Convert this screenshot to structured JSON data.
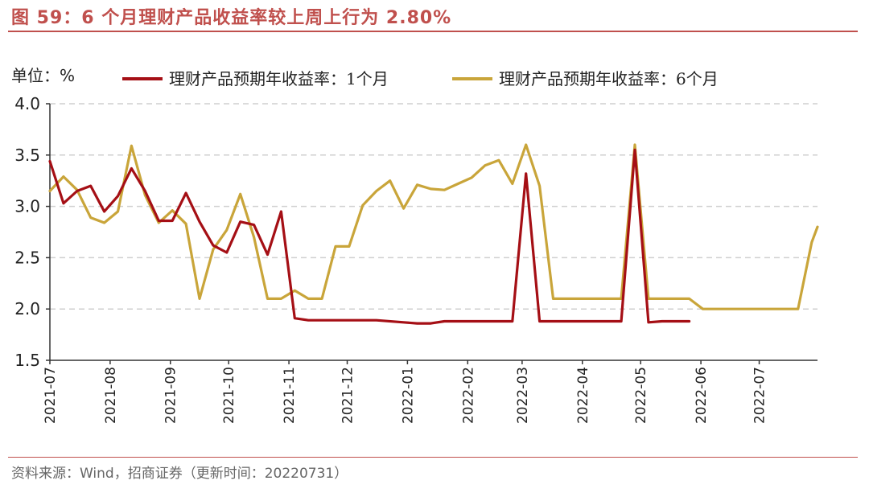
{
  "title": "图 59：6 个月理财产品收益率较上周上行为 2.80%",
  "source": "资料来源：Wind，招商证券（更新时间：20220731）",
  "chart_data": {
    "type": "line",
    "ylabel": "单位：%",
    "ylim": [
      1.5,
      4.0
    ],
    "yticks": [
      "1.5",
      "2.0",
      "2.5",
      "3.0",
      "3.5",
      "4.0"
    ],
    "xticks": [
      "2021-07",
      "2021-08",
      "2021-09",
      "2021-10",
      "2021-11",
      "2021-12",
      "2022-01",
      "2022-02",
      "2022-03",
      "2022-04",
      "2022-05",
      "2022-06",
      "2022-07"
    ],
    "grid": "horizontal-dashed",
    "legend": "top",
    "series": [
      {
        "name": "理财产品预期年收益率：1个月",
        "color": "#a50f15",
        "points": [
          [
            "2021-07-01",
            3.44
          ],
          [
            "2021-07-08",
            3.03
          ],
          [
            "2021-07-15",
            3.15
          ],
          [
            "2021-07-22",
            3.2
          ],
          [
            "2021-07-29",
            2.95
          ],
          [
            "2021-08-05",
            3.1
          ],
          [
            "2021-08-12",
            3.37
          ],
          [
            "2021-08-19",
            3.15
          ],
          [
            "2021-08-26",
            2.86
          ],
          [
            "2021-09-02",
            2.86
          ],
          [
            "2021-09-09",
            3.13
          ],
          [
            "2021-09-16",
            2.85
          ],
          [
            "2021-09-23",
            2.62
          ],
          [
            "2021-09-30",
            2.55
          ],
          [
            "2021-10-07",
            2.85
          ],
          [
            "2021-10-14",
            2.82
          ],
          [
            "2021-10-21",
            2.53
          ],
          [
            "2021-10-28",
            2.95
          ],
          [
            "2021-11-04",
            1.91
          ],
          [
            "2021-11-11",
            1.89
          ],
          [
            "2021-12-16",
            1.89
          ],
          [
            "2021-12-30",
            1.87
          ],
          [
            "2022-01-06",
            1.86
          ],
          [
            "2022-01-13",
            1.86
          ],
          [
            "2022-01-20",
            1.88
          ],
          [
            "2022-02-24",
            1.88
          ],
          [
            "2022-03-03",
            3.32
          ],
          [
            "2022-03-10",
            1.88
          ],
          [
            "2022-04-21",
            1.88
          ],
          [
            "2022-04-28",
            3.55
          ],
          [
            "2022-05-05",
            1.87
          ],
          [
            "2022-05-12",
            1.88
          ],
          [
            "2022-05-26",
            1.88
          ]
        ]
      },
      {
        "name": "理财产品预期年收益率：6个月",
        "color": "#c9a53a",
        "points": [
          [
            "2021-07-01",
            3.15
          ],
          [
            "2021-07-08",
            3.29
          ],
          [
            "2021-07-15",
            3.16
          ],
          [
            "2021-07-22",
            2.89
          ],
          [
            "2021-07-29",
            2.84
          ],
          [
            "2021-08-05",
            2.95
          ],
          [
            "2021-08-12",
            3.59
          ],
          [
            "2021-08-19",
            3.11
          ],
          [
            "2021-08-26",
            2.84
          ],
          [
            "2021-09-02",
            2.96
          ],
          [
            "2021-09-09",
            2.83
          ],
          [
            "2021-09-16",
            2.1
          ],
          [
            "2021-09-23",
            2.58
          ],
          [
            "2021-09-30",
            2.77
          ],
          [
            "2021-10-07",
            3.12
          ],
          [
            "2021-10-14",
            2.7
          ],
          [
            "2021-10-21",
            2.1
          ],
          [
            "2021-10-28",
            2.1
          ],
          [
            "2021-11-04",
            2.18
          ],
          [
            "2021-11-11",
            2.1
          ],
          [
            "2021-11-18",
            2.1
          ],
          [
            "2021-11-25",
            2.61
          ],
          [
            "2021-12-02",
            2.61
          ],
          [
            "2021-12-09",
            3.01
          ],
          [
            "2021-12-16",
            3.15
          ],
          [
            "2021-12-23",
            3.25
          ],
          [
            "2021-12-30",
            2.98
          ],
          [
            "2022-01-06",
            3.21
          ],
          [
            "2022-01-13",
            3.17
          ],
          [
            "2022-01-20",
            3.16
          ],
          [
            "2022-01-27",
            3.22
          ],
          [
            "2022-02-03",
            3.28
          ],
          [
            "2022-02-10",
            3.4
          ],
          [
            "2022-02-17",
            3.45
          ],
          [
            "2022-02-24",
            3.22
          ],
          [
            "2022-03-03",
            3.6
          ],
          [
            "2022-03-10",
            3.2
          ],
          [
            "2022-03-17",
            2.1
          ],
          [
            "2022-04-21",
            2.1
          ],
          [
            "2022-04-28",
            3.6
          ],
          [
            "2022-05-05",
            2.1
          ],
          [
            "2022-05-26",
            2.1
          ],
          [
            "2022-06-02",
            2.0
          ],
          [
            "2022-07-21",
            2.0
          ],
          [
            "2022-07-28",
            2.65
          ],
          [
            "2022-07-31",
            2.8
          ]
        ]
      }
    ]
  }
}
